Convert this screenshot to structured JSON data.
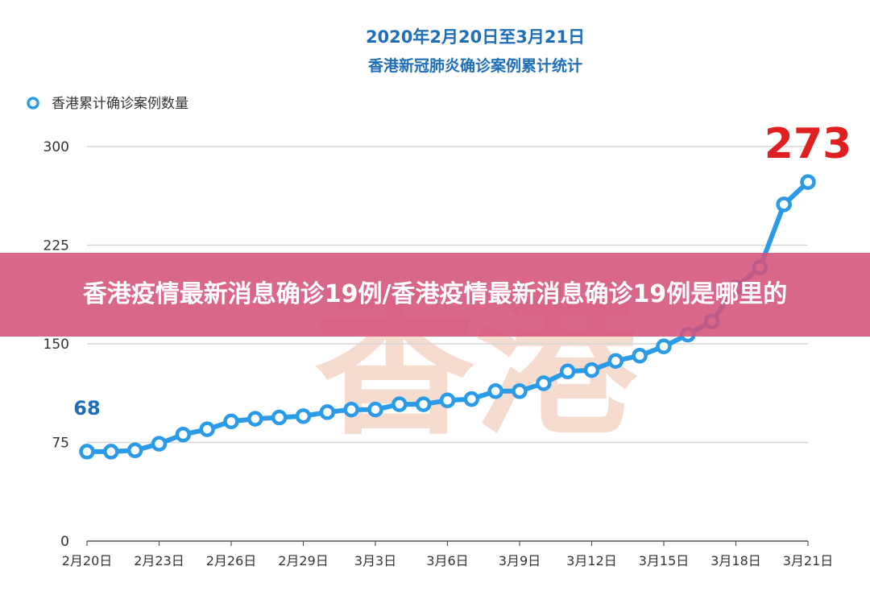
{
  "banner": {
    "headline": "香港疫情最新消息确诊19例/香港疫情最新消息确诊19例是哪里的"
  },
  "watermark": {
    "text": "香港",
    "color": "#f6dccf"
  },
  "chart_data": {
    "type": "line",
    "title": "2020年2月20日至3月21日",
    "subtitle": "香港新冠肺炎确诊案例累计统计",
    "legend": {
      "placement": "top-left"
    },
    "series": [
      {
        "name": "香港累计确诊案例数量",
        "color": "#2b9be8",
        "values": [
          68,
          68,
          69,
          74,
          81,
          85,
          91,
          93,
          94,
          95,
          98,
          100,
          100,
          104,
          104,
          107,
          108,
          114,
          114,
          120,
          129,
          130,
          137,
          141,
          148,
          157,
          167,
          193,
          208,
          256,
          273
        ]
      }
    ],
    "x_tick_labels": [
      "2月20日",
      "2月23日",
      "2月26日",
      "2月29日",
      "3月3日",
      "3月6日",
      "3月9日",
      "3月12日",
      "3月15日",
      "3月18日",
      "3月21日"
    ],
    "x_tick_every": 3,
    "y_ticks": [
      0,
      75,
      150,
      225,
      300
    ],
    "ylim": [
      0,
      300
    ],
    "grid": true,
    "annotations": [
      {
        "text": "68",
        "color": "#1f6fb8"
      },
      {
        "text": "273",
        "color": "#e02020"
      }
    ]
  }
}
